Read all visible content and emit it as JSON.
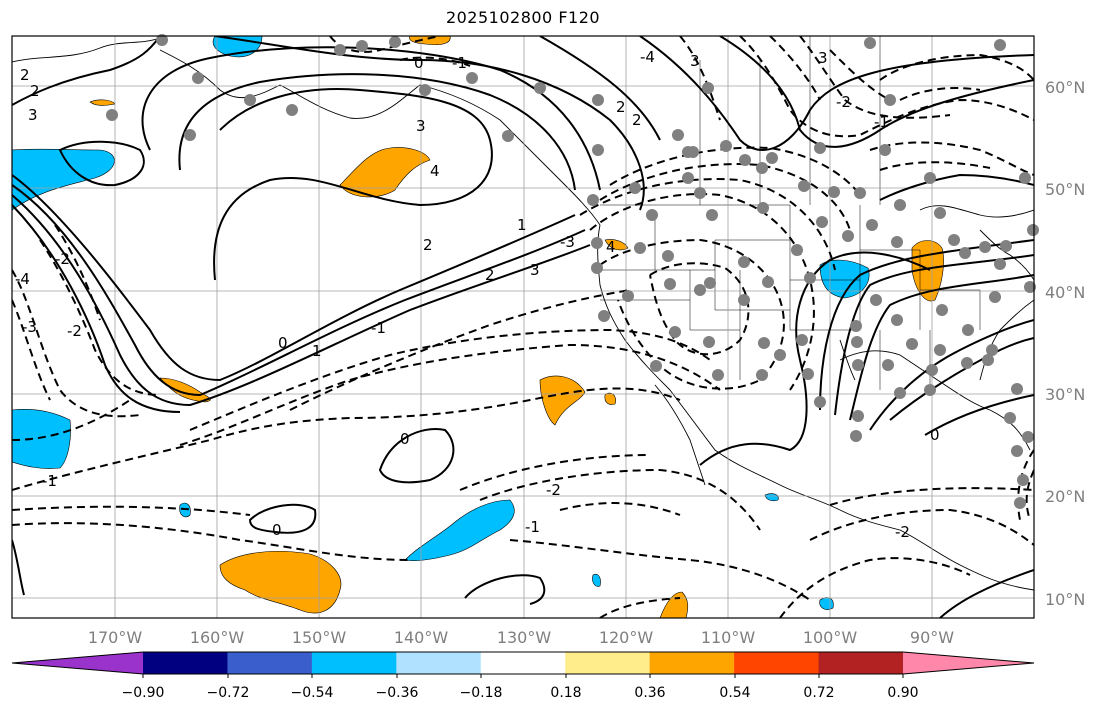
{
  "title": "2025102800 F120",
  "lat_labels": [
    "60°N",
    "50°N",
    "40°N",
    "30°N",
    "20°N",
    "10°N"
  ],
  "lon_labels": [
    "170°W",
    "160°W",
    "150°W",
    "140°W",
    "130°W",
    "120°W",
    "110°W",
    "100°W",
    "90°W"
  ],
  "colorbar": {
    "colors": [
      "#9933cc",
      "#000080",
      "#3a5fcd",
      "#00bfff",
      "#b0e2ff",
      "#ffffff",
      "#ffec8b",
      "#ffa500",
      "#ff4500",
      "#b22222",
      "#ff88aa"
    ],
    "ticks": [
      "−0.90",
      "−0.72",
      "−0.54",
      "−0.36",
      "−0.18",
      "0.18",
      "0.36",
      "0.54",
      "0.72",
      "0.90"
    ]
  },
  "contour_labels": [
    "2",
    "2",
    "3",
    "3",
    "4",
    "0",
    "1",
    "2",
    "-1",
    "-1",
    "0",
    "1",
    "2",
    "3",
    "-2",
    "-1",
    "0",
    "-2",
    "-3",
    "-4",
    "-2",
    "-3",
    "-4",
    "3",
    "2",
    "2",
    "0",
    "-1",
    "-2",
    "4",
    "3",
    "0",
    "-1",
    "-2"
  ],
  "station_marker": "gray-dot"
}
